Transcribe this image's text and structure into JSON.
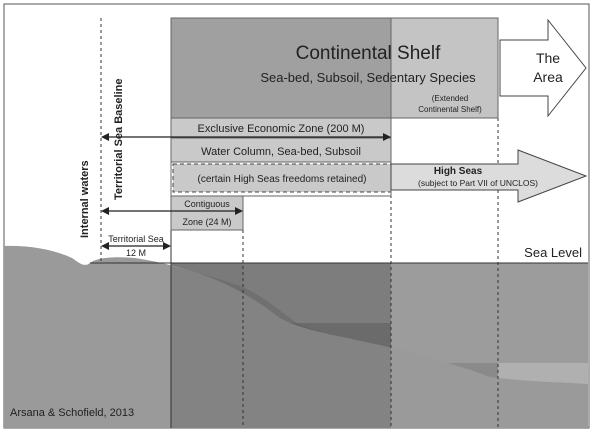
{
  "labels": {
    "continental_shelf": "Continental Shelf",
    "shelf_subtitle": "Sea-bed, Subsoil, Sedentary Species",
    "extended_shelf_line1": "(Extended",
    "extended_shelf_line2": "Continental Shelf)",
    "the_area_line1": "The",
    "the_area_line2": "Area",
    "eez": "Exclusive Economic Zone (200 M)",
    "eez_subtitle": "Water Column,   Sea-bed, Subsoil",
    "high_seas_freedoms": "(certain High Seas freedoms retained)",
    "high_seas_title": "High Seas",
    "high_seas_subtitle": "(subject to Part VII of UNCLOS)",
    "contiguous_line1": "Contiguous",
    "contiguous_line2": "Zone (24 M)",
    "territorial_sea_line1": "Territorial Sea",
    "territorial_sea_line2": "12 M",
    "territorial_baseline": "Territorial Sea Baseline",
    "internal_waters": "Internal waters",
    "sea_level": "Sea Level",
    "credit": "Arsana & Schofield, 2013"
  },
  "colors": {
    "shelf_box": "#a0a0a0",
    "extended_box": "#c4c4c4",
    "eez_box": "#c9c9c9",
    "ocean_dark": "#6b6b6b",
    "ocean_mid": "#8a8a8a",
    "ocean_light": "#b0b0b0",
    "land": "#9a9a9a",
    "arrow_fill": "#dcdcdc"
  }
}
